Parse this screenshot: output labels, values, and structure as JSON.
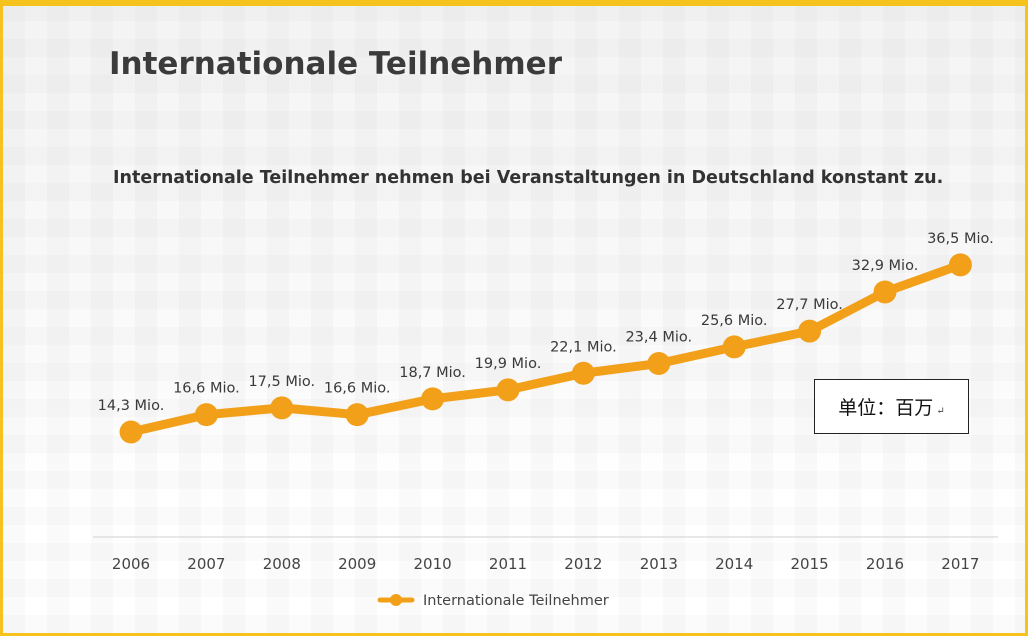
{
  "page": {
    "title": "Internationale Teilnehmer",
    "subtitle": "Internationale Teilnehmer nehmen bei Veranstaltungen in Deutschland konstant zu.",
    "unit_label": "单位：百万",
    "unit_return_mark": "↵"
  },
  "colors": {
    "series": "#f2a01a",
    "frame": "#f5c31c",
    "text": "#333333",
    "axis": "#d0d0d0"
  },
  "chart_data": {
    "type": "line",
    "title": "Internationale Teilnehmer",
    "xlabel": "",
    "ylabel": "",
    "categories": [
      "2006",
      "2007",
      "2008",
      "2009",
      "2010",
      "2011",
      "2012",
      "2013",
      "2014",
      "2015",
      "2016",
      "2017"
    ],
    "series": [
      {
        "name": "Internationale Teilnehmer",
        "values": [
          14.3,
          16.6,
          17.5,
          16.6,
          18.7,
          19.9,
          22.1,
          23.4,
          25.6,
          27.7,
          32.9,
          36.5
        ],
        "labels": [
          "14,3 Mio.",
          "16,6 Mio.",
          "17,5 Mio.",
          "16,6 Mio.",
          "18,7 Mio.",
          "19,9 Mio.",
          "22,1 Mio.",
          "23,4 Mio.",
          "25,6 Mio.",
          "27,7 Mio.",
          "32,9 Mio.",
          "36,5 Mio."
        ]
      }
    ],
    "legend": "bottom-center",
    "grid": false
  }
}
